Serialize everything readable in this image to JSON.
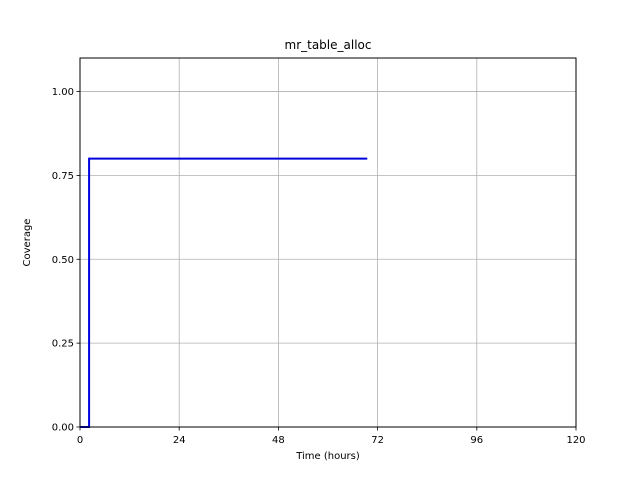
{
  "chart_data": {
    "type": "line",
    "title": "mr_table_alloc",
    "xlabel": "Time (hours)",
    "ylabel": "Coverage",
    "xlim": [
      0,
      120
    ],
    "ylim": [
      0,
      1.1
    ],
    "xticks": [
      0,
      24,
      48,
      72,
      96,
      120
    ],
    "xtick_labels": [
      "0",
      "24",
      "48",
      "72",
      "96",
      "120"
    ],
    "yticks": [
      0.0,
      0.25,
      0.5,
      0.75,
      1.0
    ],
    "ytick_labels": [
      "0.00",
      "0.25",
      "0.50",
      "0.75",
      "1.00"
    ],
    "grid": true,
    "series": [
      {
        "color": "#0000dd",
        "x": [
          0,
          2.2,
          2.2,
          69.5
        ],
        "y": [
          0,
          0,
          0.8,
          0.8
        ]
      }
    ]
  }
}
